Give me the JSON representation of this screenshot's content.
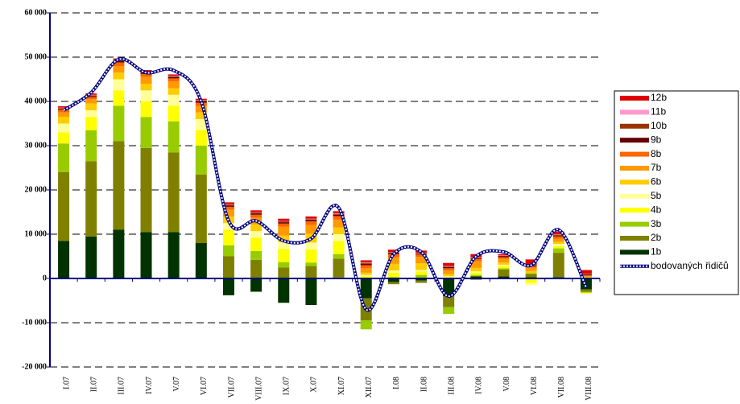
{
  "chart_data": {
    "type": "bar",
    "stacked": true,
    "categories": [
      "I.07",
      "II.07",
      "III.07",
      "IV.07",
      "V.07",
      "VI.07",
      "VII.07",
      "VIII.07",
      "IX.07",
      "X.07",
      "XI.07",
      "XII.07",
      "I.08",
      "II.08",
      "III.08",
      "IV.08",
      "V.08",
      "VI.08",
      "VII.08",
      "VIII.08"
    ],
    "ylim": [
      -20000,
      60000
    ],
    "yticks": [
      {
        "value": -20000,
        "label": "-20 000"
      },
      {
        "value": -10000,
        "label": "-10 000"
      },
      0,
      {
        "value": 10000,
        "label": "10 000"
      },
      {
        "value": 20000,
        "label": "20 000"
      },
      {
        "value": 30000,
        "label": "30 000"
      },
      {
        "value": 40000,
        "label": "40 000"
      },
      {
        "value": 50000,
        "label": "50 000"
      },
      {
        "value": 60000,
        "label": "60 000"
      }
    ],
    "grid": true,
    "legend": "right",
    "series": [
      {
        "name": "1b",
        "color": "#003300",
        "values": [
          8500,
          9500,
          11000,
          10500,
          10500,
          8000,
          -3800,
          -3000,
          -5500,
          -6000,
          200,
          -4500,
          -800,
          -500,
          -4000,
          500,
          500,
          300,
          300,
          -2500
        ]
      },
      {
        "name": "2b",
        "color": "#808000",
        "values": [
          15500,
          17000,
          20000,
          19000,
          18000,
          15500,
          5000,
          4200,
          2500,
          2800,
          4300,
          -5000,
          -500,
          -500,
          -2500,
          -300,
          1500,
          700,
          5500,
          -500
        ]
      },
      {
        "name": "3b",
        "color": "#99cc00",
        "values": [
          6500,
          7000,
          8000,
          7000,
          7000,
          6500,
          2500,
          2000,
          1200,
          800,
          1000,
          -2000,
          300,
          800,
          -1500,
          300,
          300,
          200,
          1000,
          -200
        ]
      },
      {
        "name": "4b",
        "color": "#ffff00",
        "values": [
          2500,
          3000,
          3500,
          3500,
          3500,
          3500,
          3500,
          3000,
          3000,
          3000,
          3000,
          500,
          1000,
          800,
          300,
          500,
          500,
          -1000,
          500,
          -200
        ]
      },
      {
        "name": "5b",
        "color": "#ffff99",
        "values": [
          2000,
          1500,
          2500,
          2500,
          2500,
          2500,
          1500,
          1500,
          1500,
          1500,
          1500,
          300,
          500,
          300,
          200,
          300,
          300,
          -500,
          500,
          100
        ]
      },
      {
        "name": "6b",
        "color": "#ffcc00",
        "values": [
          1500,
          1500,
          1500,
          1500,
          1500,
          1500,
          1500,
          1500,
          1500,
          2000,
          1500,
          500,
          1500,
          1500,
          500,
          800,
          500,
          500,
          500,
          200
        ]
      },
      {
        "name": "7b",
        "color": "#ff9900",
        "values": [
          1000,
          1000,
          1500,
          1500,
          1500,
          1500,
          1500,
          1500,
          2000,
          2000,
          1800,
          1000,
          1500,
          1500,
          800,
          1500,
          800,
          700,
          700,
          200
        ]
      },
      {
        "name": "8b",
        "color": "#ff6600",
        "values": [
          600,
          500,
          800,
          700,
          700,
          700,
          700,
          700,
          700,
          800,
          800,
          700,
          700,
          500,
          500,
          500,
          400,
          300,
          500,
          200
        ]
      },
      {
        "name": "9b",
        "color": "#660000",
        "values": [
          200,
          200,
          300,
          300,
          300,
          300,
          300,
          300,
          300,
          300,
          300,
          300,
          300,
          200,
          300,
          200,
          200,
          200,
          200,
          200
        ]
      },
      {
        "name": "10b",
        "color": "#993300",
        "values": [
          200,
          200,
          200,
          200,
          200,
          200,
          200,
          200,
          200,
          200,
          200,
          200,
          100,
          100,
          100,
          100,
          100,
          100,
          200,
          100
        ]
      },
      {
        "name": "11b",
        "color": "#ff99cc",
        "values": [
          100,
          100,
          100,
          100,
          100,
          100,
          100,
          100,
          100,
          100,
          100,
          100,
          100,
          100,
          100,
          100,
          100,
          100,
          100,
          100
        ]
      },
      {
        "name": "12b",
        "color": "#e00000",
        "values": [
          300,
          300,
          300,
          300,
          300,
          300,
          400,
          400,
          500,
          500,
          500,
          500,
          500,
          500,
          700,
          700,
          300,
          1200,
          600,
          800
        ]
      },
      {
        "name": "bodovaných řidičů",
        "type": "line",
        "color": "#000080",
        "values": [
          38000,
          42000,
          49500,
          46500,
          47000,
          40000,
          13000,
          13000,
          8500,
          9000,
          16000,
          -7000,
          5500,
          6000,
          -4000,
          5000,
          6000,
          3000,
          11000,
          -2000
        ]
      }
    ]
  }
}
